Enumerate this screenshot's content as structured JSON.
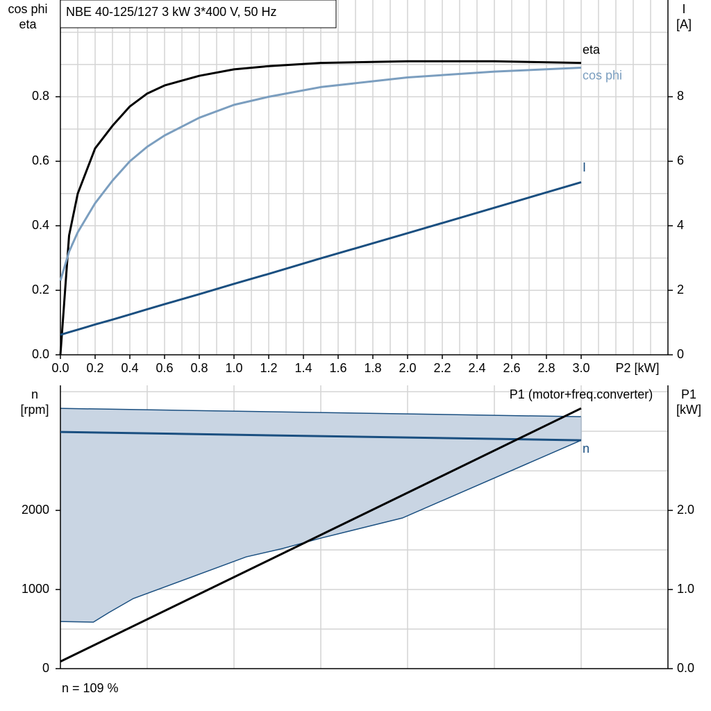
{
  "chart_data": [
    {
      "type": "line",
      "title": "NBE 40-125/127   3 kW   3*400 V, 50 Hz",
      "ylabel": [
        "cos phi",
        "eta"
      ],
      "y2label": [
        "I",
        "[A]"
      ],
      "xlabel": "P2 [kW]",
      "xlim": [
        0,
        3.5
      ],
      "ylim": [
        0,
        1.1
      ],
      "y2lim": [
        0,
        11
      ],
      "xticks": [
        {
          "value": 0,
          "label": "0.0"
        },
        0.2,
        0.4,
        0.6,
        0.8,
        {
          "value": 1,
          "label": "1.0"
        },
        1.2,
        1.4,
        1.6,
        1.8,
        {
          "value": 2,
          "label": "2.0"
        },
        2.2,
        2.4,
        2.6,
        2.8,
        {
          "value": 3,
          "label": "3.0"
        }
      ],
      "yticks": [
        {
          "value": 0,
          "label": "0.0"
        },
        0.2,
        0.4,
        0.6,
        0.8
      ],
      "y2ticks": [
        0,
        2,
        4,
        6,
        8
      ],
      "xgrid": [
        0.1,
        0.2,
        0.3,
        0.4,
        0.5,
        0.6,
        0.7,
        0.8,
        0.9,
        1.0,
        1.1,
        1.2,
        1.3,
        1.4,
        1.5,
        1.6,
        1.7,
        1.8,
        1.9,
        2.0,
        2.1,
        2.2,
        2.3,
        2.4,
        2.5,
        2.6,
        2.7,
        2.8,
        2.9,
        3.0,
        3.1,
        3.2,
        3.3,
        3.4
      ],
      "ygrid": [
        0.1,
        0.2,
        0.3,
        0.4,
        0.5,
        0.6,
        0.7,
        0.8,
        0.9,
        1.0
      ],
      "grid": true,
      "x": [
        0,
        0.05,
        0.1,
        0.2,
        0.3,
        0.4,
        0.5,
        0.6,
        0.8,
        1.0,
        1.2,
        1.5,
        2.0,
        2.5,
        3.0
      ],
      "series": [
        {
          "name": "eta",
          "color": "#000000",
          "values": [
            0,
            0.37,
            0.5,
            0.64,
            0.71,
            0.77,
            0.81,
            0.835,
            0.865,
            0.885,
            0.895,
            0.905,
            0.91,
            0.91,
            0.905
          ]
        },
        {
          "name": "cos phi",
          "color": "#7b9ebf",
          "values": [
            0.23,
            0.32,
            0.38,
            0.47,
            0.54,
            0.6,
            0.645,
            0.68,
            0.735,
            0.775,
            0.8,
            0.83,
            0.86,
            0.878,
            0.89
          ]
        },
        {
          "name": "I",
          "color": "#1a4f80",
          "axis": "y2",
          "values": [
            0.62,
            0.7,
            0.78,
            0.94,
            1.09,
            1.25,
            1.41,
            1.57,
            1.88,
            2.2,
            2.51,
            2.99,
            3.77,
            4.56,
            5.35
          ]
        }
      ]
    },
    {
      "type": "line",
      "ylabel": [
        "n",
        "[rpm]"
      ],
      "y2label": [
        "P1",
        "[kW]"
      ],
      "annotation": "n = 109 %",
      "xlim": [
        0,
        3.5
      ],
      "ylim": [
        0,
        3580
      ],
      "y2lim": [
        0,
        3.58
      ],
      "yticks": [
        0,
        1000,
        2000
      ],
      "y2ticks": [
        {
          "value": 0,
          "label": "0.0"
        },
        {
          "value": 1,
          "label": "1.0"
        },
        {
          "value": 2,
          "label": "2.0"
        }
      ],
      "xgrid": [
        0.5,
        1.0,
        1.5,
        2.0,
        2.5,
        3.0
      ],
      "ygrid": [
        500,
        1000,
        1500,
        2000,
        2500,
        3000,
        3500
      ],
      "grid": true,
      "band": {
        "color": "#c9d5e3",
        "x_upper": [
          0,
          3.0
        ],
        "upper": [
          3289,
          3184
        ],
        "x_lower": [
          0,
          0.19,
          0.28,
          0.42,
          1.07,
          1.28,
          1.5,
          1.97,
          3.0
        ],
        "lower": [
          596,
          588,
          710,
          886,
          1412,
          1518,
          1649,
          1904,
          2886
        ]
      },
      "series": [
        {
          "name": "n",
          "color": "#1a4f80",
          "x": [
            0,
            3.0
          ],
          "values": [
            2991,
            2886
          ]
        },
        {
          "name": "P1 (motor+freq.converter)",
          "color": "#000000",
          "axis": "y2",
          "x": [
            0,
            3.0
          ],
          "values": [
            0.09,
            3.29
          ]
        }
      ]
    }
  ]
}
